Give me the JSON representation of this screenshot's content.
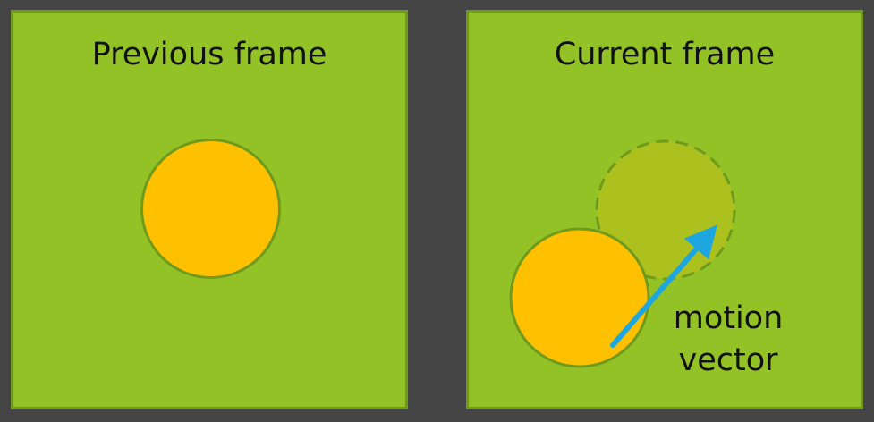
{
  "panels": {
    "previous": {
      "title": "Previous frame"
    },
    "current": {
      "title": "Current frame"
    }
  },
  "motion_vector": {
    "label_line1": "motion",
    "label_line2": "vector"
  },
  "colors": {
    "background": "#454545",
    "frame_fill": "#92c225",
    "frame_border": "#6f9a1c",
    "ball_fill": "#ffc000",
    "ghost_fill": "#acc01e",
    "arrow": "#1ea6e0"
  }
}
